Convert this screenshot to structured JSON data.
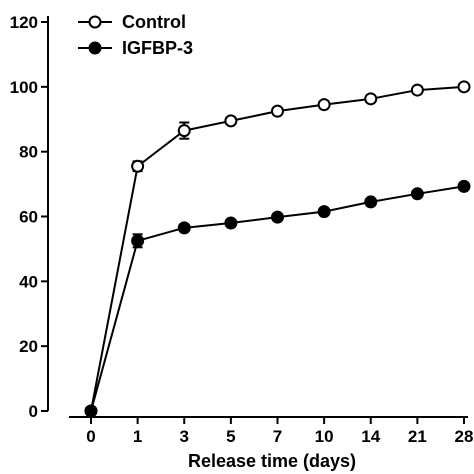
{
  "chart_data": {
    "type": "line",
    "categories": [
      "0",
      "1",
      "3",
      "5",
      "7",
      "10",
      "14",
      "21",
      "28"
    ],
    "xlabel": "Release time (days)",
    "ylabel": "",
    "ylim": [
      0,
      120
    ],
    "yticks": [
      0,
      20,
      40,
      60,
      80,
      100,
      120
    ],
    "grid": false,
    "legend_position": "top-left",
    "series": [
      {
        "name": "Control",
        "marker": "open-circle",
        "values": [
          0,
          75.5,
          86.5,
          89.5,
          92.5,
          94.5,
          96.3,
          99,
          100
        ],
        "errors": [
          0,
          1.5,
          2.5,
          1.0,
          1.0,
          1.0,
          1.0,
          1.0,
          1.0
        ]
      },
      {
        "name": "IGFBP-3",
        "marker": "filled-circle",
        "values": [
          0,
          52.5,
          56.5,
          58,
          59.8,
          61.5,
          64.5,
          67,
          69.3
        ],
        "errors": [
          0,
          2.0,
          1.0,
          0.8,
          0.8,
          0.8,
          0.8,
          0.8,
          0.8
        ]
      }
    ],
    "colors": {
      "line": "#000000",
      "background": "#ffffff"
    }
  }
}
